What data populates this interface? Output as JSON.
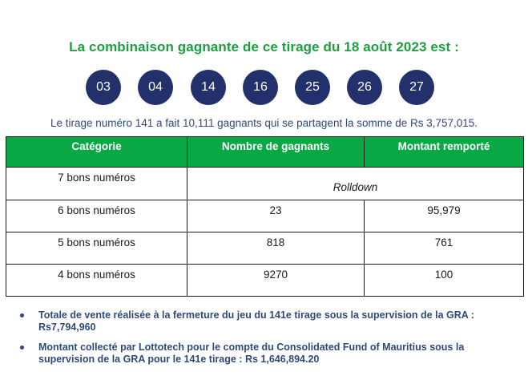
{
  "headline": "La combinaison gagnante de ce tirage du 18 août 2023 est :",
  "balls": [
    "03",
    "04",
    "14",
    "16",
    "25",
    "26",
    "27"
  ],
  "summary": "Le tirage numéro 141 a fait 10,111 gagnants qui se partagent la somme de Rs 3,757,015.",
  "table": {
    "headers": [
      "Catégorie",
      "Nombre de gagnants",
      "Montant remporté"
    ],
    "rows": [
      {
        "category": "7 bons numéros",
        "winners": "Rolldown",
        "amount": ""
      },
      {
        "category": "6 bons numéros",
        "winners": "23",
        "amount": "95,979"
      },
      {
        "category": "5 bons numéros",
        "winners": "818",
        "amount": "761"
      },
      {
        "category": "4 bons numéros",
        "winners": "9270",
        "amount": "100"
      }
    ]
  },
  "notes": [
    "Totale de vente réalisée à la fermeture du jeu du 141e tirage sous la supervision de la GRA : Rs7,794,960",
    "Montant collecté par Lottotech pour le compte du Consolidated Fund of Mauritius sous la supervision de la GRA pour le 141e tirage : Rs 1,646,894.20"
  ],
  "colors": {
    "headline": "#1e9e3e",
    "ball": "#22306b",
    "header_bg": "#0aa845",
    "body_text": "#2f4a7a"
  }
}
